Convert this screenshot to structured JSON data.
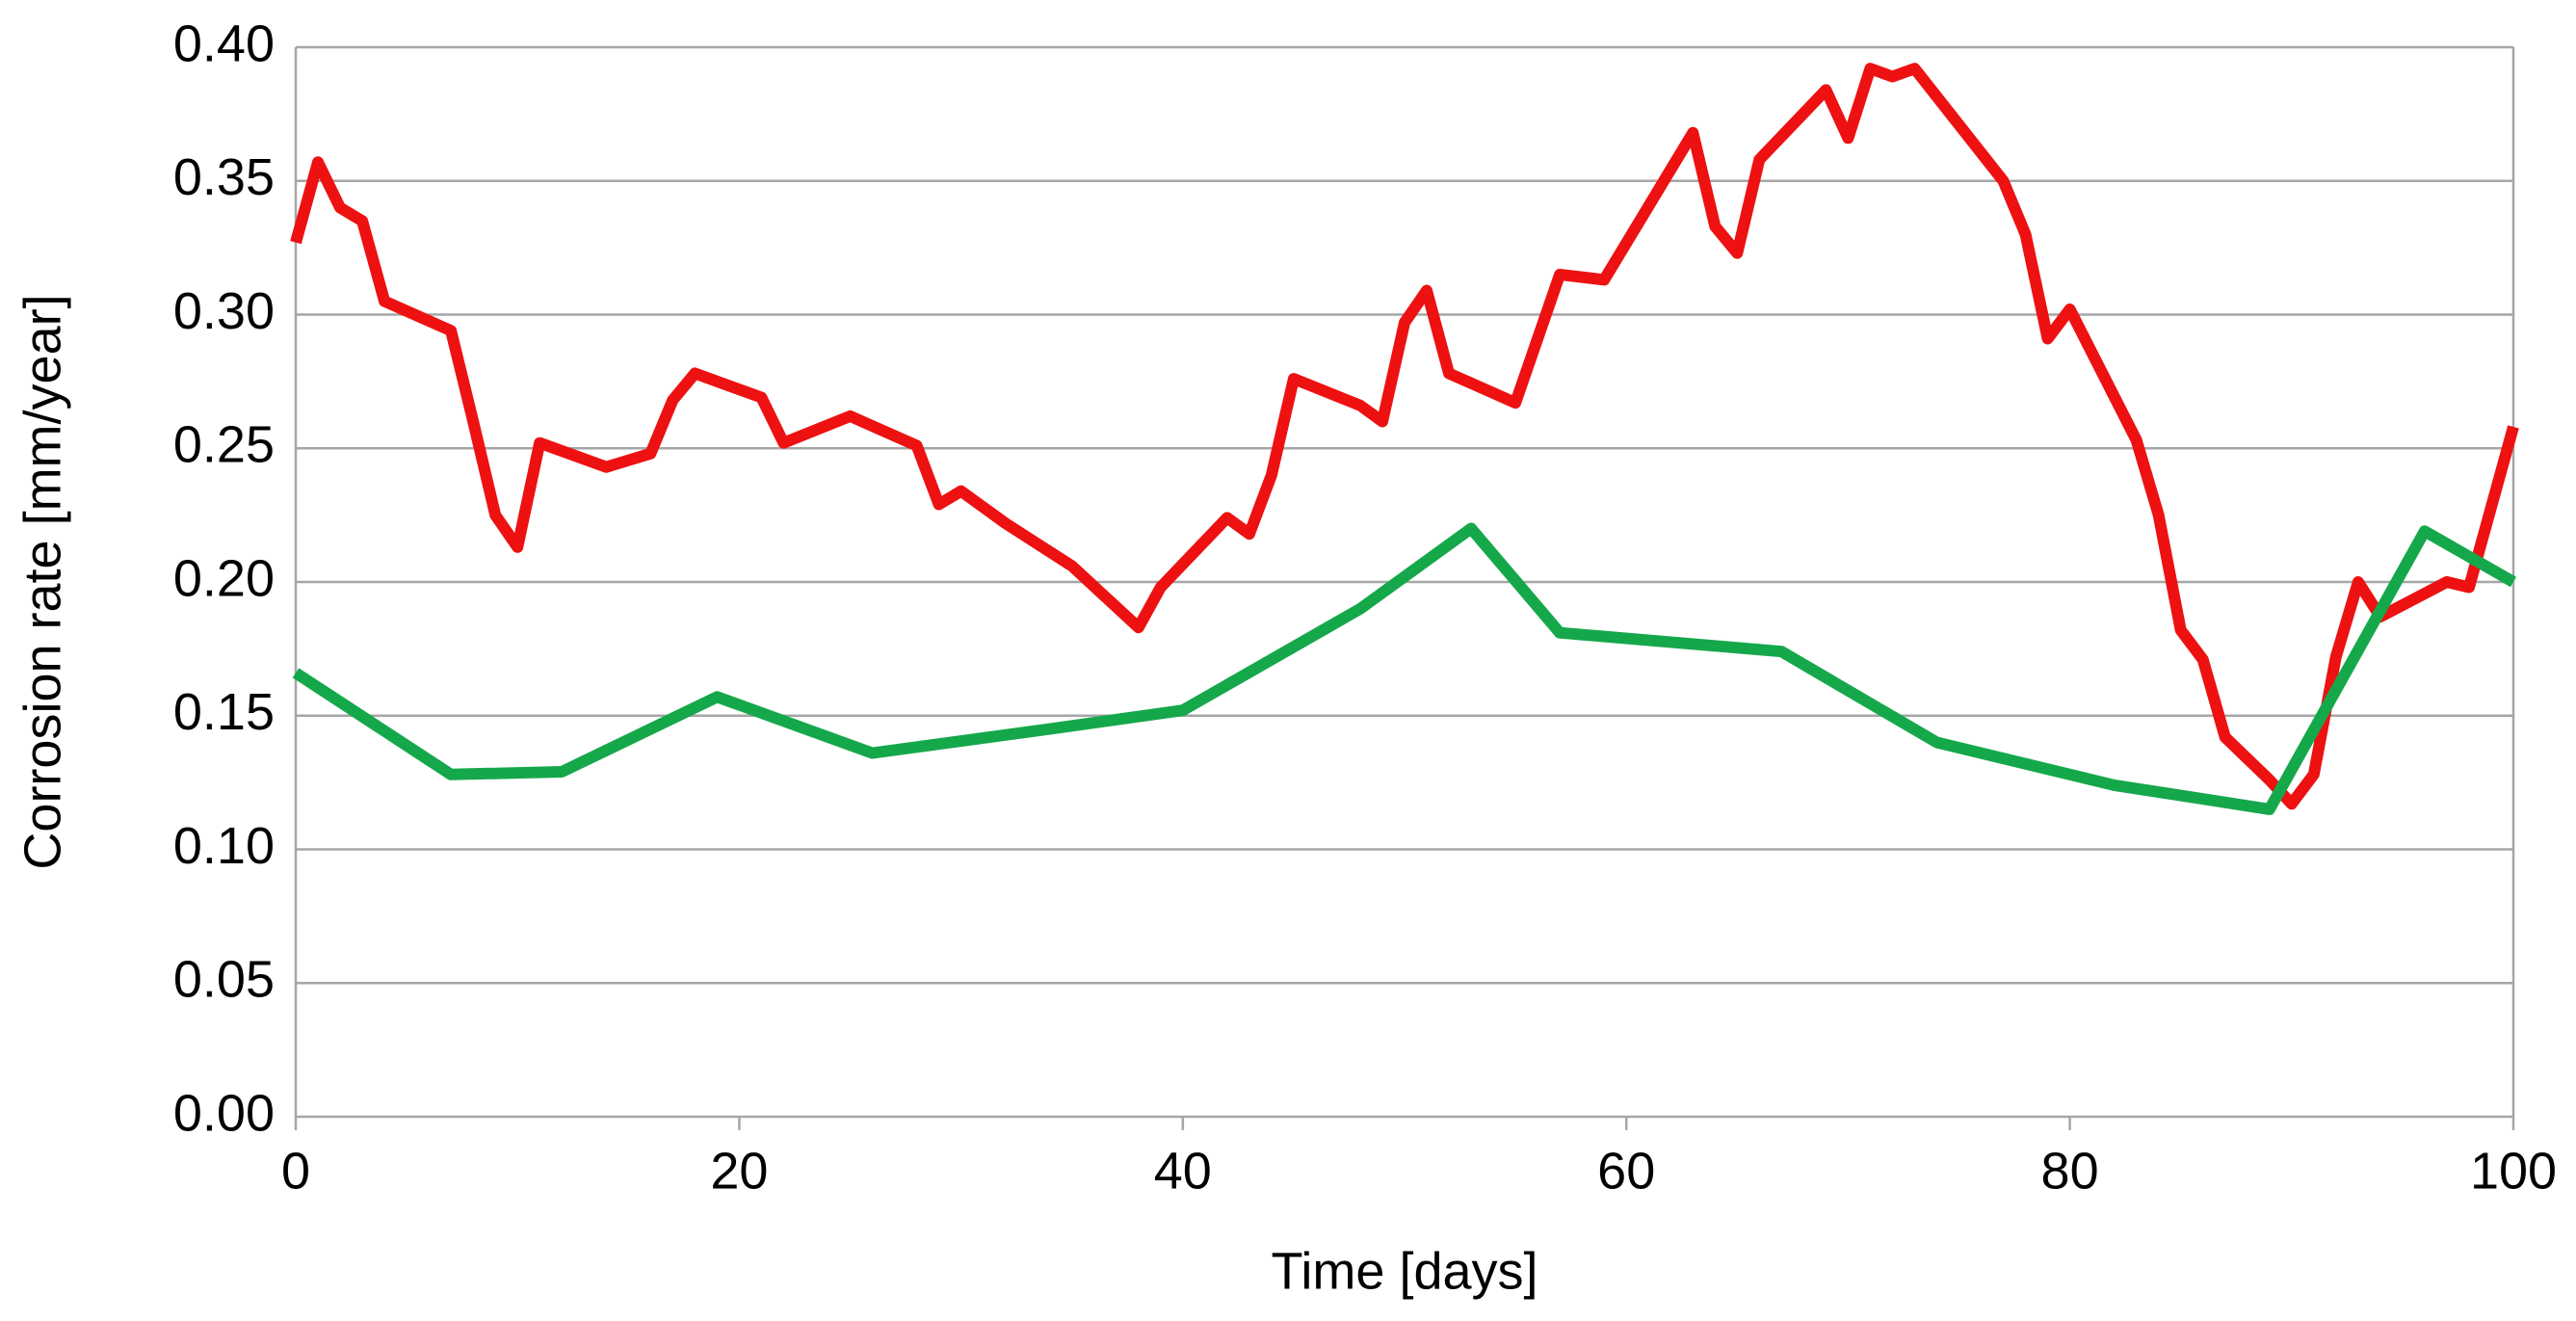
{
  "chart_data": {
    "type": "line",
    "x_label": "Time [days]",
    "y_label": "Corrosion rate  [mm/year]",
    "xlim": [
      0,
      100
    ],
    "xticks": [
      0,
      20,
      40,
      60,
      80,
      100
    ],
    "ylim": [
      0,
      0.4
    ],
    "yticks": [
      {
        "value": 0,
        "label": "0.00"
      },
      {
        "value": 0.05,
        "label": "0.05"
      },
      {
        "value": 0.1,
        "label": "0.10"
      },
      {
        "value": 0.15,
        "label": "0.15"
      },
      {
        "value": 0.2,
        "label": "0.20"
      },
      {
        "value": 0.25,
        "label": "0.25"
      },
      {
        "value": 0.3,
        "label": "0.30"
      },
      {
        "value": 0.35,
        "label": "0.35"
      },
      {
        "value": 0.4,
        "label": "0.40"
      }
    ],
    "grid": true,
    "series": [
      {
        "color": "#ee1111",
        "x": [
          0,
          1,
          2,
          3,
          4,
          7,
          8,
          9,
          10,
          11,
          14,
          16,
          17,
          18,
          21,
          22,
          25,
          28,
          29,
          30,
          32,
          35,
          38,
          39,
          42,
          43,
          44,
          45,
          48,
          49,
          50,
          51,
          52,
          55,
          57,
          59,
          63,
          64,
          65,
          66,
          69,
          70,
          71,
          72,
          73,
          77,
          78,
          79,
          80,
          83,
          84,
          85,
          86,
          87,
          89,
          90,
          91,
          92,
          93,
          94,
          97,
          98,
          100
        ],
        "values": [
          0.327,
          0.357,
          0.34,
          0.335,
          0.305,
          0.294,
          0.26,
          0.225,
          0.213,
          0.252,
          0.243,
          0.248,
          0.268,
          0.278,
          0.269,
          0.252,
          0.262,
          0.251,
          0.229,
          0.234,
          0.222,
          0.206,
          0.183,
          0.198,
          0.224,
          0.218,
          0.24,
          0.276,
          0.266,
          0.26,
          0.297,
          0.309,
          0.278,
          0.267,
          0.315,
          0.313,
          0.368,
          0.333,
          0.323,
          0.358,
          0.384,
          0.366,
          0.392,
          0.389,
          0.392,
          0.35,
          0.33,
          0.291,
          0.302,
          0.253,
          0.225,
          0.182,
          0.171,
          0.142,
          0.126,
          0.117,
          0.128,
          0.172,
          0.2,
          0.187,
          0.2,
          0.198,
          0.258
        ]
      },
      {
        "color": "#15a84a",
        "x": [
          0,
          7,
          12,
          19,
          26,
          34,
          40,
          48,
          53,
          57,
          67,
          74,
          82,
          89,
          96,
          100
        ],
        "values": [
          0.166,
          0.128,
          0.129,
          0.157,
          0.136,
          0.145,
          0.152,
          0.19,
          0.22,
          0.181,
          0.174,
          0.14,
          0.124,
          0.115,
          0.219,
          0.2
        ]
      }
    ]
  }
}
